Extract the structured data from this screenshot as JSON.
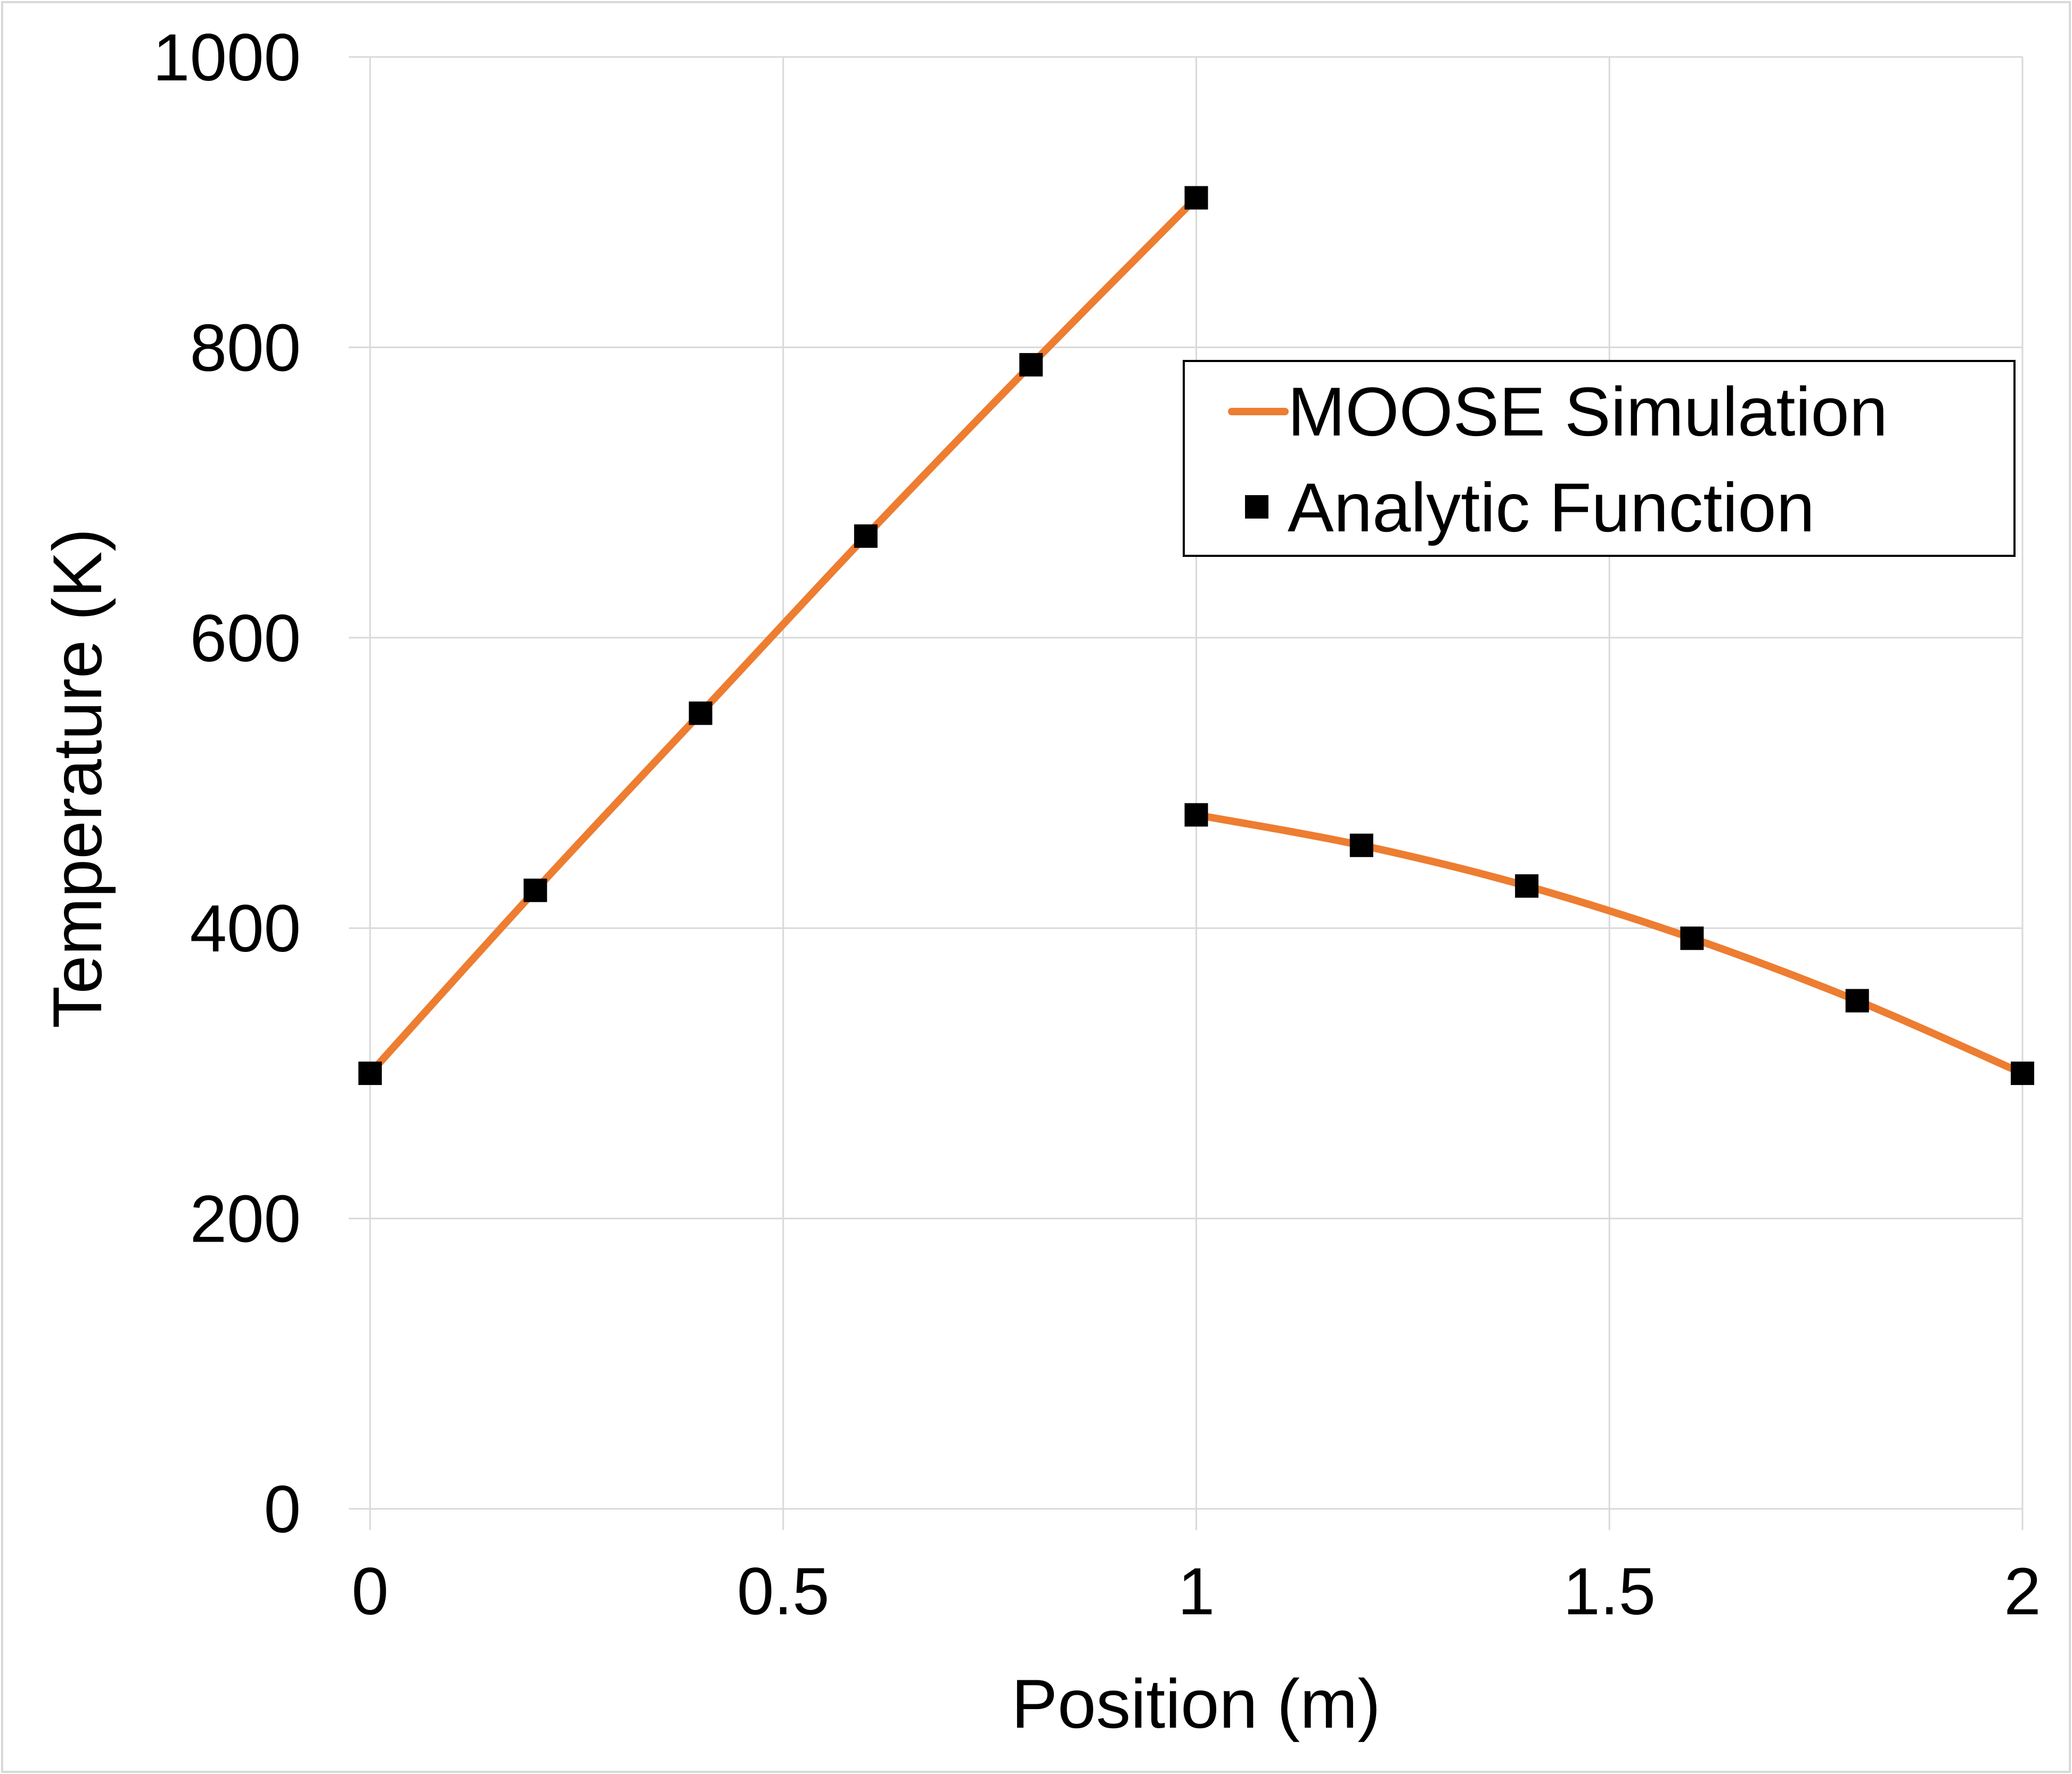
{
  "chart_data": {
    "type": "line",
    "title": "",
    "xlabel": "Position (m)",
    "ylabel": "Temperature (K)",
    "xlim": [
      0,
      2
    ],
    "ylim": [
      0,
      1000
    ],
    "xticks": [
      0,
      0.5,
      1,
      1.5,
      2
    ],
    "xtick_labels": [
      "0",
      "0.5",
      "1",
      "1.5",
      "2"
    ],
    "yticks": [
      0,
      200,
      400,
      600,
      800,
      1000
    ],
    "ytick_labels": [
      "0",
      "200",
      "400",
      "600",
      "800",
      "1000"
    ],
    "grid": true,
    "legend_position": "upper-right",
    "series": [
      {
        "name": "MOOSE Simulation",
        "style": "line",
        "color": "#ed7d31",
        "segments": [
          {
            "x": [
              0,
              0.2,
              0.4,
              0.6,
              0.8,
              1.0
            ],
            "y": [
              300,
              426,
              548,
              670,
              788,
              903
            ]
          },
          {
            "x": [
              1.0,
              1.2,
              1.4,
              1.6,
              1.8,
              2.0
            ],
            "y": [
              478,
              457,
              429,
              393,
              350,
              300
            ]
          }
        ]
      },
      {
        "name": "Analytic Function",
        "style": "markers",
        "marker": "square",
        "color": "#000000",
        "x": [
          0,
          0.2,
          0.4,
          0.6,
          0.8,
          1.0,
          1.0,
          1.2,
          1.4,
          1.6,
          1.8,
          2.0
        ],
        "y": [
          300,
          426,
          548,
          670,
          788,
          903,
          478,
          457,
          429,
          393,
          350,
          300
        ]
      }
    ]
  }
}
